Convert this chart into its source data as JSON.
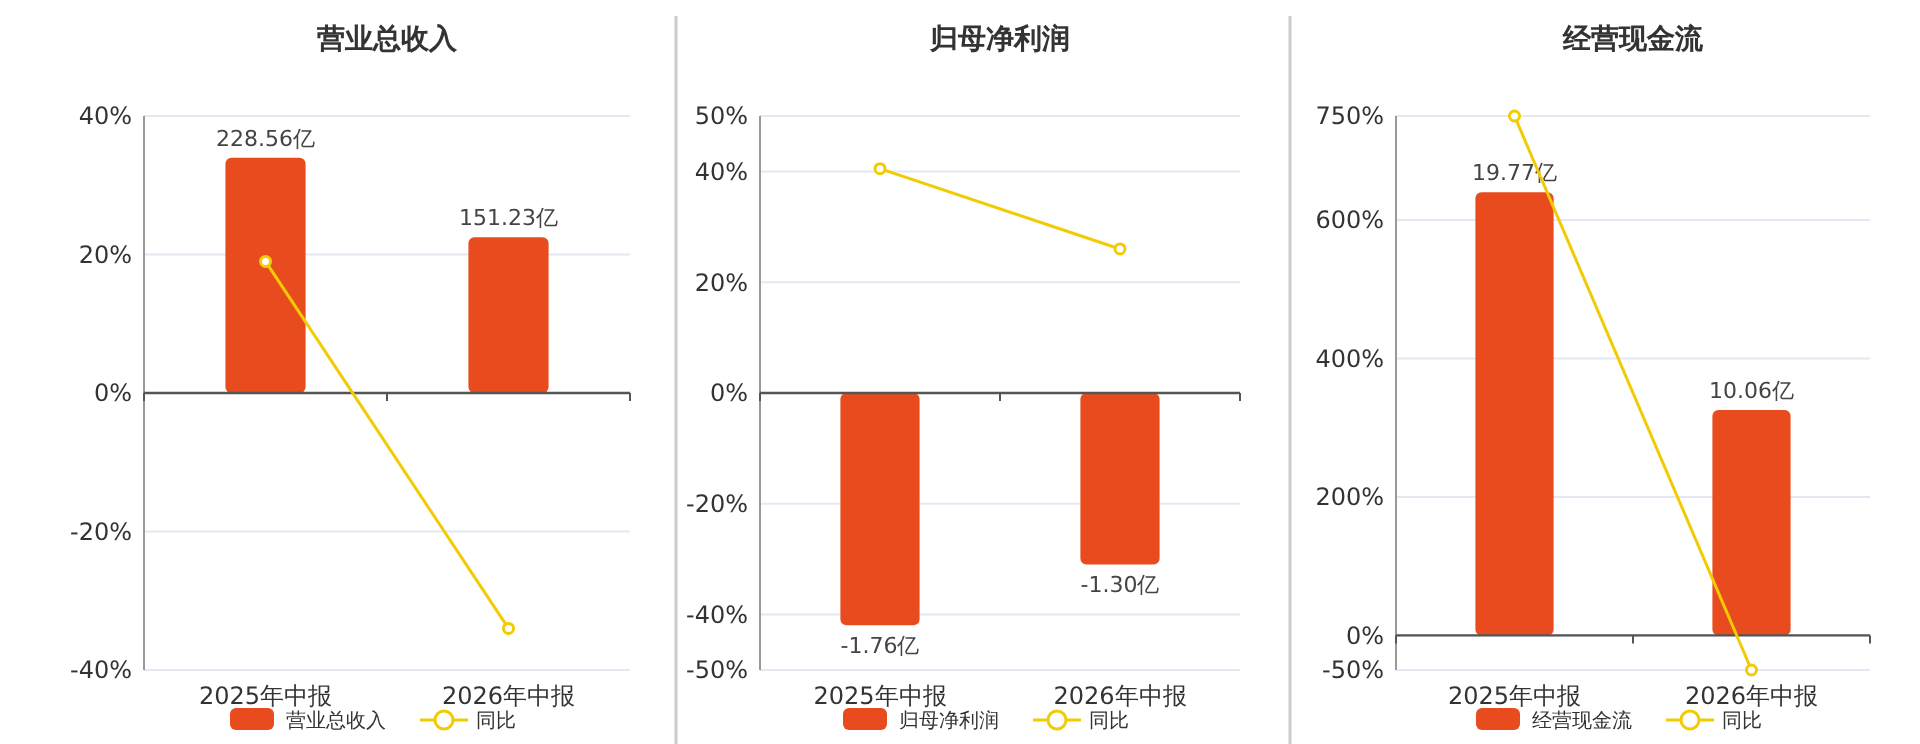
{
  "chart_data": [
    {
      "type": "bar",
      "title": "营业总收入",
      "categories": [
        "2025年中报",
        "2026年中报"
      ],
      "ylim": [
        -40,
        40
      ],
      "yticks": [
        {
          "value": 40,
          "label": "40%"
        },
        {
          "value": 20,
          "label": "20%"
        },
        {
          "value": 0,
          "label": "0%"
        },
        {
          "value": -20,
          "label": "-20%"
        },
        {
          "value": -40,
          "label": "-40%"
        }
      ],
      "y2lim": [
        -269,
        269
      ],
      "grid": "y",
      "legend": "bottom",
      "series": [
        {
          "name": "营业总收入",
          "axis": "y2",
          "color": "#e84c1e",
          "values": [
            228.56,
            151.23
          ],
          "value_labels": [
            "228.56亿",
            "151.23亿"
          ]
        },
        {
          "name": "同比",
          "type": "line",
          "color": "#f2cb05",
          "marker": "circle",
          "values": [
            19,
            -34
          ]
        }
      ]
    },
    {
      "type": "bar",
      "title": "归母净利润",
      "categories": [
        "2025年中报",
        "2026年中报"
      ],
      "ylim": [
        -50,
        50
      ],
      "yticks": [
        {
          "value": 50,
          "label": "50%"
        },
        {
          "value": 40,
          "label": "40%"
        },
        {
          "value": 20,
          "label": "20%"
        },
        {
          "value": 0,
          "label": "0%"
        },
        {
          "value": -20,
          "label": "-20%"
        },
        {
          "value": -40,
          "label": "-40%"
        },
        {
          "value": -50,
          "label": "-50%"
        }
      ],
      "y2lim": [
        -2.1,
        2.1
      ],
      "grid": "y",
      "legend": "bottom",
      "series": [
        {
          "name": "归母净利润",
          "axis": "y2",
          "color": "#e84c1e",
          "values": [
            -1.76,
            -1.3
          ],
          "value_labels": [
            "-1.76亿",
            "-1.30亿"
          ]
        },
        {
          "name": "同比",
          "type": "line",
          "color": "#f2cb05",
          "marker": "circle",
          "values": [
            40.5,
            26
          ]
        }
      ]
    },
    {
      "type": "bar",
      "title": "经营现金流",
      "categories": [
        "2025年中报",
        "2026年中报"
      ],
      "ylim": [
        -50,
        750
      ],
      "yticks": [
        {
          "value": 750,
          "label": "750%"
        },
        {
          "value": 600,
          "label": "600%"
        },
        {
          "value": 400,
          "label": "400%"
        },
        {
          "value": 200,
          "label": "200%"
        },
        {
          "value": 0,
          "label": "0%"
        },
        {
          "value": -50,
          "label": "-50%"
        }
      ],
      "y2lim": [
        -1.54,
        23.17
      ],
      "grid": "y",
      "legend": "bottom",
      "series": [
        {
          "name": "经营现金流",
          "axis": "y2",
          "color": "#e84c1e",
          "values": [
            19.77,
            10.06
          ],
          "value_labels": [
            "19.77亿",
            "10.06亿"
          ]
        },
        {
          "name": "同比",
          "type": "line",
          "color": "#f2cb05",
          "marker": "circle",
          "values": [
            750,
            -50
          ]
        }
      ]
    }
  ]
}
